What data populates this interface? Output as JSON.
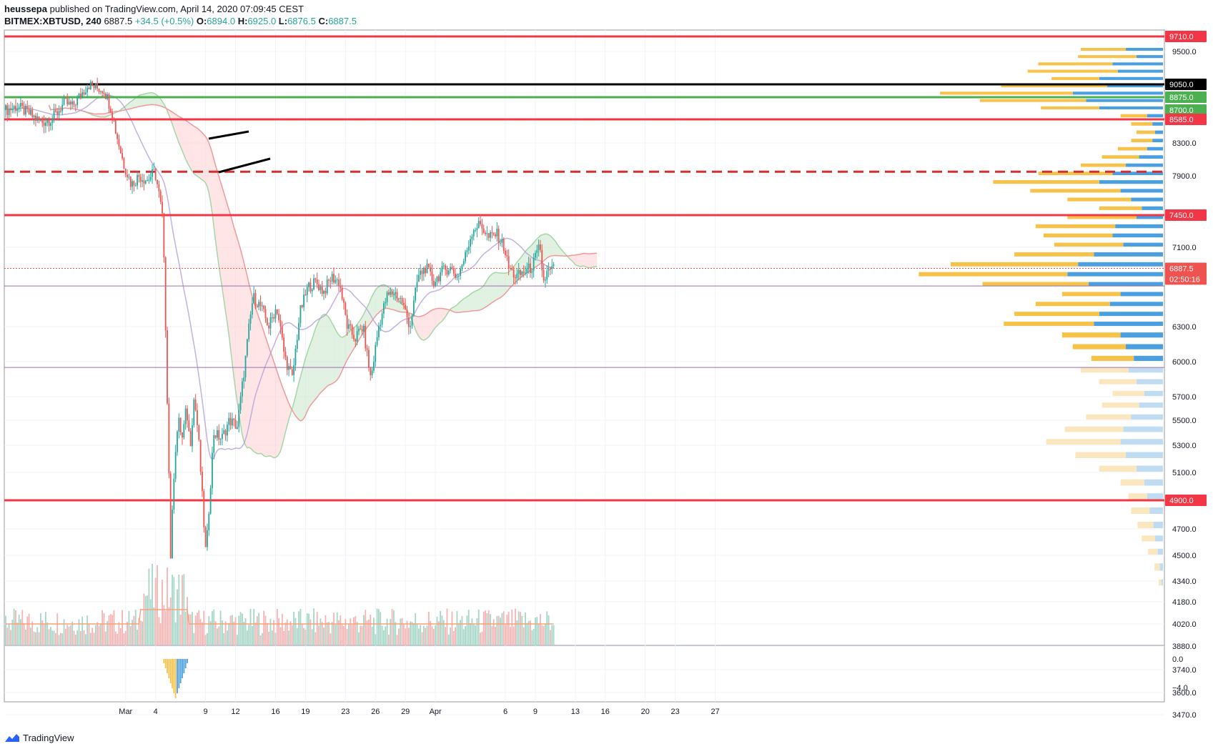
{
  "header": {
    "author": "heussepa",
    "published_text": "published on TradingView.com, April 14, 2020 07:09:45 CEST",
    "symbol": "BITMEX:XBTUSD, 240",
    "last": "6887.5",
    "change": "+34.5 (+0.5%)",
    "o_label": "O:",
    "o_value": "6894.0",
    "h_label": "H:",
    "h_value": "6925.0",
    "l_label": "L:",
    "l_value": "6876.5",
    "c_label": "C:",
    "c_value": "6887.5"
  },
  "footer": {
    "brand": "TradingView"
  },
  "colors": {
    "up": "#26a69a",
    "down": "#ef5350",
    "kumo_bull": "#c8e6c9",
    "kumo_bear": "#ffcdd2",
    "vp_up": "#4a9fe0",
    "vp_down": "#f7c24a",
    "vp_up_faint": "#bfdcf3",
    "vp_down_faint": "#fbe7bf",
    "level_red": "#f23645",
    "level_black": "#000000",
    "level_green": "#4caf50",
    "purple": "#9c6fb0"
  },
  "chart_data": {
    "type": "candlestick",
    "x_ticks": [
      "Mar",
      "4",
      "9",
      "12",
      "16",
      "19",
      "23",
      "26",
      "29",
      "Apr",
      "6",
      "9",
      "13",
      "16",
      "20",
      "23",
      "27"
    ],
    "price_ticks": [
      "9500.0",
      "8300.0",
      "7900.0",
      "7100.0",
      "6300.0",
      "6000.0",
      "5700.0",
      "5500.0",
      "5300.0",
      "5100.0",
      "4700.0",
      "4500.0",
      "4340.0",
      "4180.0",
      "4020.0",
      "3880.0",
      "3740.0",
      "3600.0",
      "3470.0"
    ],
    "price_tick_values": [
      9500,
      8300,
      7900,
      7100,
      6300,
      6000,
      5700,
      5500,
      5300,
      5100,
      4700,
      4500,
      4340,
      4180,
      4020,
      3880,
      3740,
      3600,
      3470
    ],
    "price_labels": [
      {
        "text": "9710.0",
        "value": 9710,
        "color": "#f23645"
      },
      {
        "text": "9050.0",
        "value": 9050,
        "color": "#000000"
      },
      {
        "text": "8875.0",
        "value": 8875,
        "color": "#4caf50"
      },
      {
        "text": "8700.0",
        "value": 8700,
        "color": "#ffffff"
      },
      {
        "text": "8585.0",
        "value": 8585,
        "color": "#f23645"
      },
      {
        "text": "7450.0",
        "value": 7450,
        "color": "#f23645"
      },
      {
        "text": "6887.5",
        "value": 6887.5,
        "color": "#ef5350"
      },
      {
        "text": "02:50:16",
        "value": 6780,
        "color": "#ef5350"
      },
      {
        "text": "4900.0",
        "value": 4900,
        "color": "#f23645"
      }
    ],
    "osc_ticks": [
      "0.0",
      "−4.0"
    ],
    "osc_tick_values": [
      0,
      -4
    ],
    "horizontal_levels": [
      {
        "value": 9710,
        "color": "#f23645",
        "style": "solid"
      },
      {
        "value": 9050,
        "color": "#000000",
        "style": "solid"
      },
      {
        "value": 8875,
        "color": "#4caf50",
        "style": "solid"
      },
      {
        "value": 8585,
        "color": "#f23645",
        "style": "solid"
      },
      {
        "value": 7950,
        "color": "#d32f2f",
        "style": "dashed"
      },
      {
        "value": 7450,
        "color": "#f23645",
        "style": "solid"
      },
      {
        "value": 6887.5,
        "color": "#ef5350",
        "style": "dotted"
      },
      {
        "value": 6710,
        "color": "#9c6fb0",
        "style": "thin"
      },
      {
        "value": 5950,
        "color": "#9c6fb0",
        "style": "thin"
      },
      {
        "value": 4900,
        "color": "#f23645",
        "style": "solid"
      }
    ],
    "close_path": [
      [
        0,
        8700
      ],
      [
        3,
        8750
      ],
      [
        6,
        8650
      ],
      [
        9,
        8550
      ],
      [
        12,
        8600
      ],
      [
        15,
        8800
      ],
      [
        17,
        8750
      ],
      [
        19,
        8900
      ],
      [
        21,
        9050
      ],
      [
        23,
        9000
      ],
      [
        25,
        8980
      ],
      [
        27,
        8700
      ],
      [
        28,
        8450
      ],
      [
        30,
        8050
      ],
      [
        32,
        7800
      ],
      [
        34,
        7900
      ],
      [
        36,
        7850
      ],
      [
        38,
        7950
      ],
      [
        39,
        7700
      ],
      [
        40,
        7400
      ],
      [
        41,
        5900
      ],
      [
        42,
        4500
      ],
      [
        43,
        5200
      ],
      [
        44,
        5500
      ],
      [
        45,
        5350
      ],
      [
        46,
        5600
      ],
      [
        47,
        5300
      ],
      [
        48,
        5700
      ],
      [
        49,
        5400
      ],
      [
        51,
        4500
      ],
      [
        53,
        5400
      ],
      [
        55,
        5350
      ],
      [
        57,
        5500
      ],
      [
        59,
        5450
      ],
      [
        61,
        6000
      ],
      [
        63,
        6600
      ],
      [
        65,
        6500
      ],
      [
        67,
        6300
      ],
      [
        69,
        6500
      ],
      [
        71,
        6050
      ],
      [
        73,
        5850
      ],
      [
        75,
        6450
      ],
      [
        77,
        6700
      ],
      [
        79,
        6750
      ],
      [
        81,
        6650
      ],
      [
        83,
        6800
      ],
      [
        85,
        6750
      ],
      [
        87,
        6300
      ],
      [
        89,
        6200
      ],
      [
        91,
        6300
      ],
      [
        93,
        5850
      ],
      [
        95,
        6300
      ],
      [
        97,
        6600
      ],
      [
        99,
        6650
      ],
      [
        101,
        6550
      ],
      [
        103,
        6300
      ],
      [
        105,
        6800
      ],
      [
        107,
        6900
      ],
      [
        109,
        6750
      ],
      [
        111,
        6850
      ],
      [
        113,
        6900
      ],
      [
        115,
        6800
      ],
      [
        117,
        7000
      ],
      [
        119,
        7300
      ],
      [
        121,
        7350
      ],
      [
        123,
        7200
      ],
      [
        125,
        7250
      ],
      [
        127,
        7100
      ],
      [
        128,
        6900
      ],
      [
        130,
        6800
      ],
      [
        132,
        6850
      ],
      [
        134,
        6900
      ],
      [
        136,
        7100
      ],
      [
        137,
        6750
      ],
      [
        138,
        6850
      ],
      [
        140,
        6887.5
      ]
    ],
    "volume_profile": [
      {
        "price": 9500,
        "up": 70,
        "down": 85
      },
      {
        "price": 9400,
        "up": 50,
        "down": 110
      },
      {
        "price": 9300,
        "up": 95,
        "down": 140
      },
      {
        "price": 9200,
        "up": 85,
        "down": 170
      },
      {
        "price": 9100,
        "up": 120,
        "down": 90
      },
      {
        "price": 9000,
        "up": 105,
        "down": 200
      },
      {
        "price": 8900,
        "up": 170,
        "down": 250
      },
      {
        "price": 8800,
        "up": 145,
        "down": 200
      },
      {
        "price": 8700,
        "up": 120,
        "down": 110
      },
      {
        "price": 8600,
        "up": 30,
        "down": 50
      },
      {
        "price": 8500,
        "up": 20,
        "down": 40
      },
      {
        "price": 8400,
        "up": 15,
        "down": 35
      },
      {
        "price": 8300,
        "up": 20,
        "down": 40
      },
      {
        "price": 8200,
        "up": 30,
        "down": 55
      },
      {
        "price": 8100,
        "up": 45,
        "down": 70
      },
      {
        "price": 8000,
        "up": 70,
        "down": 85
      },
      {
        "price": 7900,
        "up": 95,
        "down": 140
      },
      {
        "price": 7800,
        "up": 120,
        "down": 200
      },
      {
        "price": 7700,
        "up": 80,
        "down": 170
      },
      {
        "price": 7600,
        "up": 60,
        "down": 120
      },
      {
        "price": 7500,
        "up": 40,
        "down": 80
      },
      {
        "price": 7400,
        "up": 50,
        "down": 130
      },
      {
        "price": 7300,
        "up": 90,
        "down": 150
      },
      {
        "price": 7200,
        "up": 95,
        "down": 130
      },
      {
        "price": 7100,
        "up": 75,
        "down": 130
      },
      {
        "price": 7000,
        "up": 130,
        "down": 150
      },
      {
        "price": 6900,
        "up": 160,
        "down": 240
      },
      {
        "price": 6800,
        "up": 180,
        "down": 280
      },
      {
        "price": 6700,
        "up": 140,
        "down": 200
      },
      {
        "price": 6600,
        "up": 80,
        "down": 110
      },
      {
        "price": 6500,
        "up": 100,
        "down": 140
      },
      {
        "price": 6400,
        "up": 120,
        "down": 160
      },
      {
        "price": 6300,
        "up": 130,
        "down": 170
      },
      {
        "price": 6200,
        "up": 80,
        "down": 110
      },
      {
        "price": 6100,
        "up": 70,
        "down": 100
      },
      {
        "price": 6000,
        "up": 55,
        "down": 80
      },
      {
        "price": 5900,
        "up": 65,
        "down": 90
      },
      {
        "price": 5800,
        "up": 50,
        "down": 70
      },
      {
        "price": 5700,
        "up": 35,
        "down": 60
      },
      {
        "price": 5600,
        "up": 45,
        "down": 70
      },
      {
        "price": 5500,
        "up": 60,
        "down": 85
      },
      {
        "price": 5400,
        "up": 75,
        "down": 110
      },
      {
        "price": 5300,
        "up": 80,
        "down": 140
      },
      {
        "price": 5200,
        "up": 70,
        "down": 95
      },
      {
        "price": 5100,
        "up": 50,
        "down": 70
      },
      {
        "price": 5000,
        "up": 35,
        "down": 45
      },
      {
        "price": 4900,
        "up": 30,
        "down": 35
      },
      {
        "price": 4800,
        "up": 25,
        "down": 35
      },
      {
        "price": 4700,
        "up": 18,
        "down": 30
      },
      {
        "price": 4600,
        "up": 15,
        "down": 25
      },
      {
        "price": 4500,
        "up": 10,
        "down": 18
      },
      {
        "price": 4400,
        "up": 6,
        "down": 10
      },
      {
        "price": 4300,
        "up": 3,
        "down": 5
      }
    ]
  }
}
